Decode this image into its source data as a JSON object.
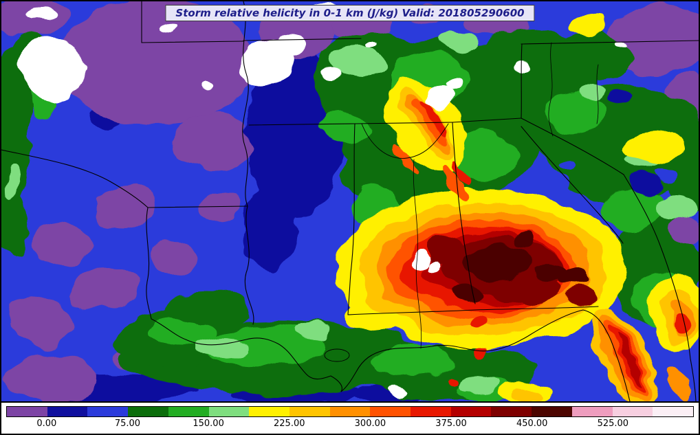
{
  "title": {
    "text": "Storm relative helicity in 0-1 km (J/kg) Valid: 201805290600"
  },
  "palette": {
    "purple": "#7D44A5",
    "navy": "#10109E",
    "blue": "#2B3BDB",
    "dkgreen": "#0C6E0C",
    "green": "#23AD23",
    "ltgreen": "#7FDE7F",
    "yellow": "#FFF000",
    "gold": "#FFC400",
    "orange": "#FF9000",
    "orgred": "#FF5200",
    "red": "#E81800",
    "dkred": "#B40000",
    "maroon": "#7E0000",
    "brown": "#4C0500",
    "white": "#FFFFFF",
    "pink": "#EE9DBE",
    "ltpink": "#F7CFE0",
    "palepink": "#FBEFF5"
  },
  "colorbar": {
    "ticks": [
      "0.00",
      "75.00",
      "150.00",
      "225.00",
      "300.00",
      "375.00",
      "450.00",
      "525.00"
    ],
    "colors": [
      "#7D44A5",
      "#10109E",
      "#2B3BDB",
      "#0C6E0C",
      "#23AD23",
      "#7FDE7F",
      "#FFF000",
      "#FFC400",
      "#FF9000",
      "#FF5200",
      "#E81800",
      "#B40000",
      "#7E0000",
      "#4C0500",
      "#EE9DBE",
      "#F7CFE0",
      "#FBEFF5"
    ]
  },
  "chart_data": {
    "type": "heatmap",
    "title": "Storm relative helicity in 0-1 km (J/kg)",
    "valid": "201805290600",
    "units": "J/kg",
    "colorbar_ticks": [
      0.0,
      75.0,
      150.0,
      225.0,
      300.0,
      375.0,
      450.0,
      525.0
    ],
    "colorbar_interval": 37.5,
    "legend_position": "bottom",
    "region": "Southeastern United States (Gulf Coast states)",
    "pattern": "Maximum helicity core (dark red, ~300-450 J/kg) over central Alabama and Georgia with secondary band along the Florida Atlantic coast; low values (blue, 0-75) over Texas/Arkansas/Louisiana; negative/below-zero (purple) patches across the north and west; white patches indicate off-scale/missing values."
  }
}
